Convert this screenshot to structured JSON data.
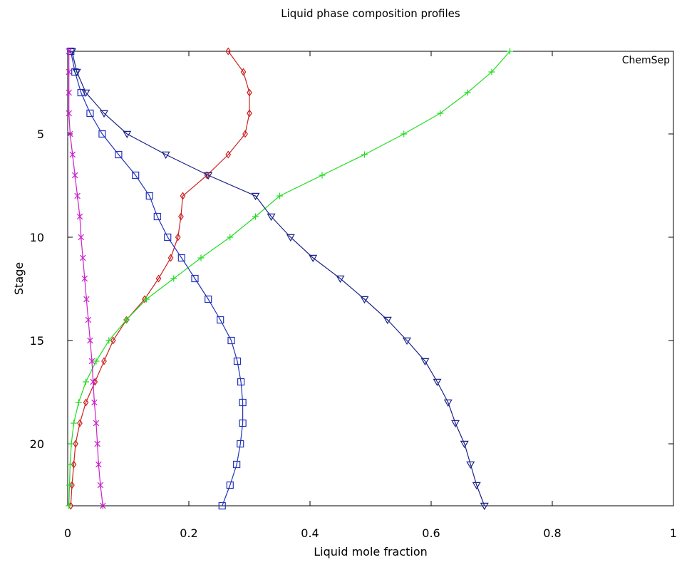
{
  "chart_data": {
    "type": "line",
    "title": "Liquid phase composition profiles",
    "xlabel": "Liquid mole fraction",
    "ylabel": "Stage",
    "watermark": "ChemSep",
    "xlim": [
      0,
      1
    ],
    "ylim": [
      23,
      1
    ],
    "y_inverted": true,
    "grid": false,
    "legend": "none",
    "xticks": [
      0,
      0.2,
      0.4,
      0.6,
      0.8,
      1
    ],
    "xtick_labels": [
      "0",
      "0.2",
      "0.4",
      "0.6",
      "0.8",
      "1"
    ],
    "yticks": [
      5,
      10,
      15,
      20
    ],
    "ytick_labels": [
      "5",
      "10",
      "15",
      "20"
    ],
    "stages": [
      1,
      2,
      3,
      4,
      5,
      6,
      7,
      8,
      9,
      10,
      11,
      12,
      13,
      14,
      15,
      16,
      17,
      18,
      19,
      20,
      21,
      22,
      23
    ],
    "series": [
      {
        "color": "#cc2222",
        "marker": "diamond",
        "values": [
          0.265,
          0.29,
          0.3,
          0.3,
          0.293,
          0.265,
          0.23,
          0.19,
          0.187,
          0.182,
          0.17,
          0.15,
          0.127,
          0.097,
          0.075,
          0.06,
          0.045,
          0.03,
          0.02,
          0.013,
          0.01,
          0.007,
          0.005
        ]
      },
      {
        "color": "#22dd22",
        "marker": "plus",
        "values": [
          0.73,
          0.7,
          0.66,
          0.615,
          0.555,
          0.49,
          0.42,
          0.35,
          0.31,
          0.268,
          0.22,
          0.175,
          0.13,
          0.097,
          0.068,
          0.047,
          0.03,
          0.018,
          0.01,
          0.006,
          0.004,
          0.003,
          0.002
        ]
      },
      {
        "color": "#2233bb",
        "marker": "square",
        "values": [
          0.005,
          0.012,
          0.022,
          0.037,
          0.057,
          0.084,
          0.112,
          0.135,
          0.148,
          0.165,
          0.188,
          0.21,
          0.232,
          0.252,
          0.27,
          0.28,
          0.286,
          0.289,
          0.289,
          0.285,
          0.279,
          0.268,
          0.255
        ]
      },
      {
        "color": "#1a2288",
        "marker": "triangle-down",
        "values": [
          0.007,
          0.015,
          0.03,
          0.06,
          0.098,
          0.162,
          0.232,
          0.31,
          0.336,
          0.368,
          0.405,
          0.45,
          0.49,
          0.528,
          0.56,
          0.59,
          0.61,
          0.628,
          0.64,
          0.655,
          0.665,
          0.675,
          0.688
        ]
      },
      {
        "color": "#cc22cc",
        "marker": "x",
        "values": [
          0.002,
          0.002,
          0.002,
          0.002,
          0.004,
          0.008,
          0.012,
          0.016,
          0.02,
          0.022,
          0.025,
          0.028,
          0.031,
          0.034,
          0.037,
          0.04,
          0.042,
          0.044,
          0.047,
          0.049,
          0.051,
          0.054,
          0.058
        ]
      }
    ]
  }
}
